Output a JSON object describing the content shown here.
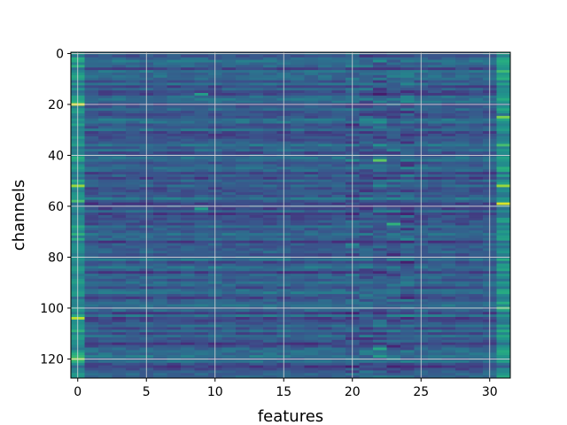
{
  "chart_data": {
    "type": "heatmap",
    "title": "",
    "xlabel": "features",
    "ylabel": "channels",
    "n_cols": 32,
    "n_rows": 128,
    "xlim": [
      -0.5,
      31.5
    ],
    "ylim": [
      127.5,
      -0.5
    ],
    "x_ticks": [
      0,
      5,
      10,
      15,
      20,
      25,
      30
    ],
    "y_ticks": [
      0,
      20,
      40,
      60,
      80,
      100,
      120
    ],
    "grid": true,
    "colormap": "viridis",
    "value_range": [
      0,
      1
    ],
    "colors": {
      "low": "#440154",
      "mid_low": "#3b528b",
      "mid": "#21918c",
      "mid_high": "#5ec962",
      "high": "#fde725",
      "grid": "#d9d9d9"
    },
    "bright_cells": [
      {
        "x": 0,
        "y": 20,
        "v": 0.95
      },
      {
        "x": 0,
        "y": 52,
        "v": 0.85
      },
      {
        "x": 0,
        "y": 58,
        "v": 0.7
      },
      {
        "x": 0,
        "y": 104,
        "v": 0.9
      },
      {
        "x": 0,
        "y": 120,
        "v": 0.8
      },
      {
        "x": 0,
        "y": 33,
        "v": 0.55
      },
      {
        "x": 31,
        "y": 25,
        "v": 0.8
      },
      {
        "x": 31,
        "y": 52,
        "v": 0.85
      },
      {
        "x": 31,
        "y": 59,
        "v": 0.95
      },
      {
        "x": 31,
        "y": 100,
        "v": 0.7
      },
      {
        "x": 22,
        "y": 42,
        "v": 0.75
      },
      {
        "x": 23,
        "y": 67,
        "v": 0.65
      },
      {
        "x": 22,
        "y": 116,
        "v": 0.6
      },
      {
        "x": 9,
        "y": 16,
        "v": 0.55
      },
      {
        "x": 9,
        "y": 61,
        "v": 0.55
      }
    ]
  }
}
